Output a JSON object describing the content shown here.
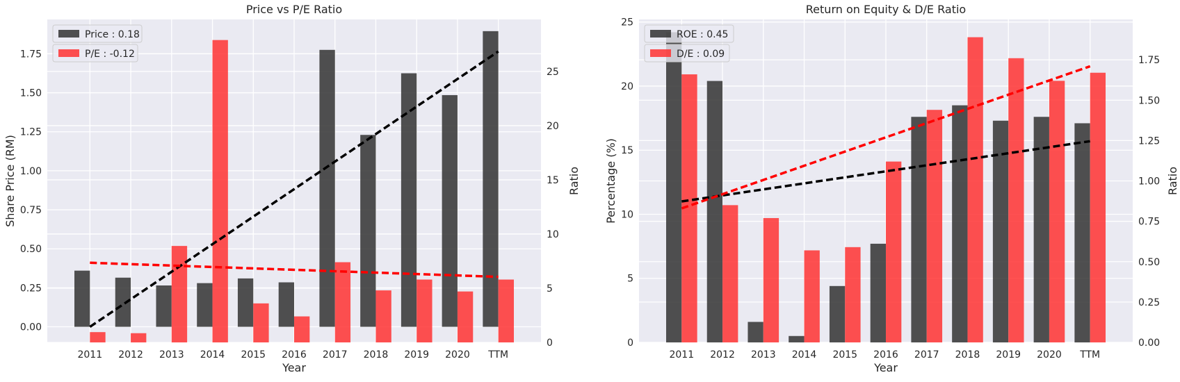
{
  "charts": [
    {
      "type": "bar",
      "title": "Price vs P/E Ratio",
      "xlabel": "Year",
      "ylabel_left": "Share Price (RM)",
      "ylabel_right": "Ratio",
      "categories": [
        "2011",
        "2012",
        "2013",
        "2014",
        "2015",
        "2016",
        "2017",
        "2018",
        "2019",
        "2020",
        "TTM"
      ],
      "ylim_left": [
        -0.1,
        1.97
      ],
      "ylim_right": [
        0,
        29.8
      ],
      "yticks_left": [
        "0.00",
        "0.25",
        "0.50",
        "0.75",
        "1.00",
        "1.25",
        "1.50",
        "1.75"
      ],
      "yticks_left_values": [
        0,
        0.25,
        0.5,
        0.75,
        1.0,
        1.25,
        1.5,
        1.75
      ],
      "yticks_right": [
        "0",
        "5",
        "10",
        "15",
        "20",
        "25"
      ],
      "yticks_right_values": [
        0,
        5,
        10,
        15,
        20,
        25
      ],
      "series": [
        {
          "name": "Price : 0.18",
          "axis": "left",
          "color": "#333333",
          "values": [
            0.36,
            0.315,
            0.265,
            0.28,
            0.31,
            0.285,
            1.775,
            1.23,
            1.625,
            1.485,
            1.895
          ],
          "trend": [
            0.0,
            1.765
          ]
        },
        {
          "name": "P/E : -0.12",
          "axis": "right",
          "color": "#ff3333",
          "values": [
            0.95,
            0.85,
            8.9,
            27.9,
            3.6,
            2.4,
            7.4,
            4.8,
            5.8,
            4.7,
            5.8
          ],
          "trend": [
            7.35,
            6.05
          ]
        }
      ],
      "legend_position": "upper-left",
      "grid": true
    },
    {
      "type": "bar",
      "title": "Return on Equity & D/E Ratio",
      "xlabel": "Year",
      "ylabel_left": "Percentage (%)",
      "ylabel_right": "Ratio",
      "categories": [
        "2011",
        "2012",
        "2013",
        "2014",
        "2015",
        "2016",
        "2017",
        "2018",
        "2019",
        "2020",
        "TTM"
      ],
      "ylim_left": [
        0,
        25.2
      ],
      "ylim_right": [
        0,
        2.0
      ],
      "yticks_left": [
        "0",
        "5",
        "10",
        "15",
        "20",
        "25"
      ],
      "yticks_left_values": [
        0,
        5,
        10,
        15,
        20,
        25
      ],
      "yticks_right": [
        "0.00",
        "0.25",
        "0.50",
        "0.75",
        "1.00",
        "1.25",
        "1.50",
        "1.75"
      ],
      "yticks_right_values": [
        0,
        0.25,
        0.5,
        0.75,
        1.0,
        1.25,
        1.5,
        1.75
      ],
      "series": [
        {
          "name": "ROE : 0.45",
          "axis": "left",
          "color": "#333333",
          "values": [
            24.2,
            20.4,
            1.6,
            0.5,
            4.4,
            7.7,
            17.6,
            18.5,
            17.3,
            17.6,
            17.1
          ],
          "trend": [
            11.0,
            15.7
          ]
        },
        {
          "name": "D/E : 0.09",
          "axis": "right",
          "color": "#ff3333",
          "values": [
            1.66,
            0.85,
            0.77,
            0.57,
            0.59,
            1.12,
            1.44,
            1.89,
            1.76,
            1.62,
            1.67
          ],
          "trend": [
            0.83,
            1.71
          ]
        }
      ],
      "legend_position": "upper-left",
      "grid": true
    }
  ]
}
